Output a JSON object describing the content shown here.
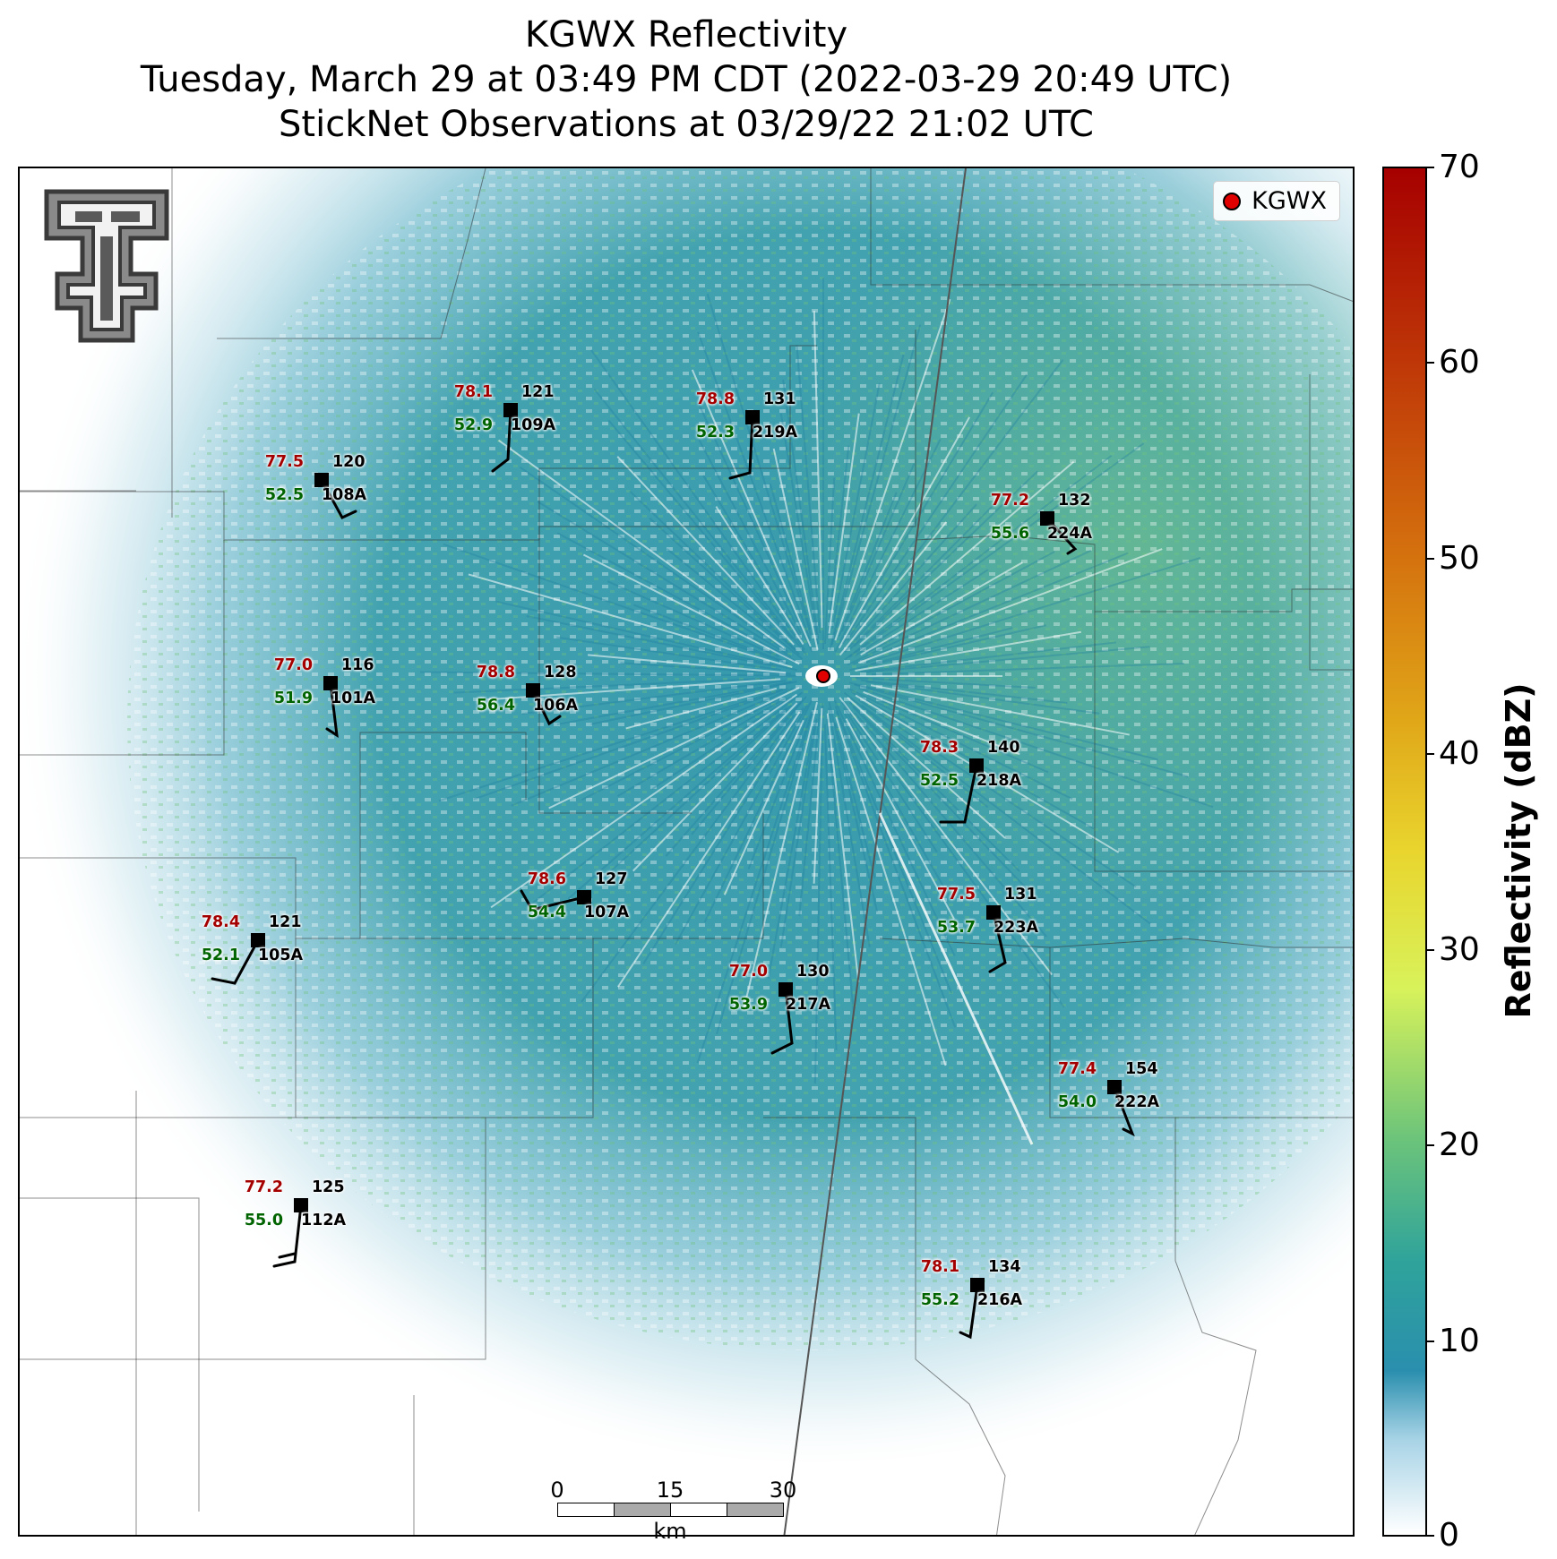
{
  "title": {
    "line1": "KGWX Reflectivity",
    "line2": "Tuesday, March 29 at 03:49 PM CDT (2022-03-29 20:49 UTC)",
    "line3": "StickNet Observations at 03/29/22 21:02 UTC"
  },
  "legend": {
    "radar_label": "KGWX"
  },
  "colors": {
    "temperature": "#a50000",
    "dewpoint": "#006400",
    "radar_marker": "#e00000",
    "reflectivity_low": "#2a93a8",
    "reflectivity_mid": "#6dc47a"
  },
  "stations": [
    {
      "id": "108A",
      "temp": "77.5",
      "dew": "52.5",
      "pres": "120"
    },
    {
      "id": "109A",
      "temp": "78.1",
      "dew": "52.9",
      "pres": "121"
    },
    {
      "id": "219A",
      "temp": "78.8",
      "dew": "52.3",
      "pres": "131"
    },
    {
      "id": "224A",
      "temp": "77.2",
      "dew": "55.6",
      "pres": "132"
    },
    {
      "id": "101A",
      "temp": "77.0",
      "dew": "51.9",
      "pres": "116"
    },
    {
      "id": "106A",
      "temp": "78.8",
      "dew": "56.4",
      "pres": "128"
    },
    {
      "id": "218A",
      "temp": "78.3",
      "dew": "52.5",
      "pres": "140"
    },
    {
      "id": "107A",
      "temp": "78.6",
      "dew": "54.4",
      "pres": "127"
    },
    {
      "id": "223A",
      "temp": "77.5",
      "dew": "53.7",
      "pres": "131"
    },
    {
      "id": "105A",
      "temp": "78.4",
      "dew": "52.1",
      "pres": "121"
    },
    {
      "id": "217A",
      "temp": "77.0",
      "dew": "53.9",
      "pres": "130"
    },
    {
      "id": "222A",
      "temp": "77.4",
      "dew": "54.0",
      "pres": "154"
    },
    {
      "id": "112A",
      "temp": "77.2",
      "dew": "55.0",
      "pres": "125"
    },
    {
      "id": "216A",
      "temp": "78.1",
      "dew": "55.2",
      "pres": "134"
    }
  ],
  "scalebar": {
    "ticks": [
      "0",
      "15",
      "30"
    ],
    "unit": "km"
  },
  "colorbar": {
    "title": "Reflectivity (dBZ)",
    "ticks": [
      "70",
      "60",
      "50",
      "40",
      "30",
      "20",
      "10",
      "0"
    ]
  }
}
